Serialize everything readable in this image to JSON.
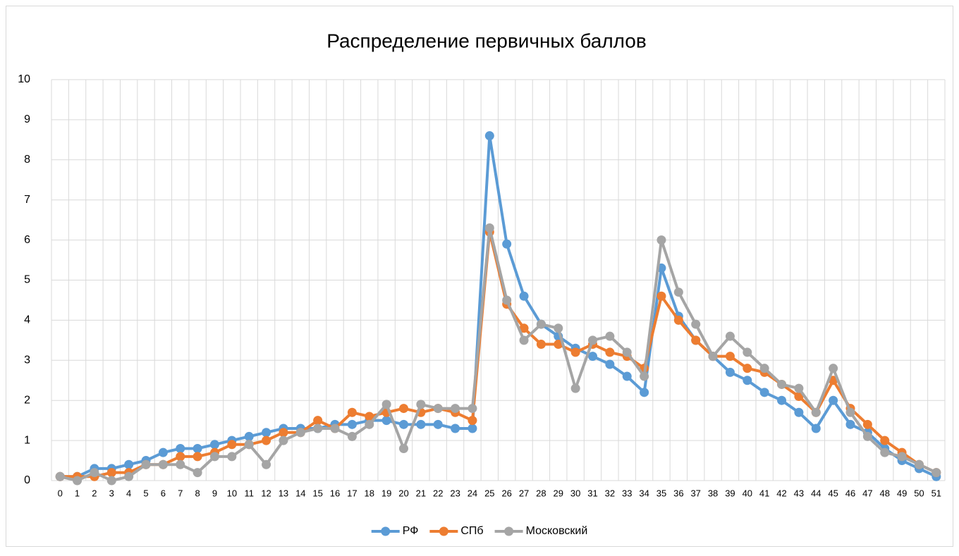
{
  "chart_data": {
    "type": "line",
    "title": "Распределение первичных баллов",
    "categories": [
      "0",
      "1",
      "2",
      "3",
      "4",
      "5",
      "6",
      "7",
      "8",
      "9",
      "10",
      "11",
      "12",
      "13",
      "14",
      "15",
      "16",
      "17",
      "18",
      "19",
      "20",
      "21",
      "22",
      "23",
      "24",
      "25",
      "26",
      "27",
      "28",
      "29",
      "30",
      "31",
      "32",
      "33",
      "34",
      "35",
      "36",
      "37",
      "38",
      "39",
      "40",
      "41",
      "42",
      "43",
      "44",
      "45",
      "46",
      "47",
      "48",
      "49",
      "50",
      "51"
    ],
    "series": [
      {
        "name": "РФ",
        "color": "#5b9bd5",
        "values": [
          0.1,
          0.1,
          0.3,
          0.3,
          0.4,
          0.5,
          0.7,
          0.8,
          0.8,
          0.9,
          1.0,
          1.1,
          1.2,
          1.3,
          1.3,
          1.3,
          1.4,
          1.4,
          1.5,
          1.5,
          1.4,
          1.4,
          1.4,
          1.3,
          1.3,
          8.6,
          5.9,
          4.6,
          3.9,
          3.6,
          3.3,
          3.1,
          2.9,
          2.6,
          2.2,
          5.3,
          4.1,
          3.5,
          3.1,
          2.7,
          2.5,
          2.2,
          2.0,
          1.7,
          1.3,
          2.0,
          1.4,
          1.2,
          0.8,
          0.5,
          0.3,
          0.1
        ]
      },
      {
        "name": "СПб",
        "color": "#ed7d31",
        "values": [
          0.1,
          0.1,
          0.1,
          0.2,
          0.2,
          0.4,
          0.4,
          0.6,
          0.6,
          0.7,
          0.9,
          0.9,
          1.0,
          1.2,
          1.2,
          1.5,
          1.3,
          1.7,
          1.6,
          1.7,
          1.8,
          1.7,
          1.8,
          1.7,
          1.5,
          6.2,
          4.4,
          3.8,
          3.4,
          3.4,
          3.2,
          3.4,
          3.2,
          3.1,
          2.8,
          4.6,
          4.0,
          3.5,
          3.1,
          3.1,
          2.8,
          2.7,
          2.4,
          2.1,
          1.7,
          2.5,
          1.8,
          1.4,
          1.0,
          0.7,
          0.4,
          0.2
        ]
      },
      {
        "name": "Московский",
        "color": "#a5a5a5",
        "values": [
          0.1,
          0.0,
          0.2,
          0.0,
          0.1,
          0.4,
          0.4,
          0.4,
          0.2,
          0.6,
          0.6,
          0.9,
          0.4,
          1.0,
          1.2,
          1.3,
          1.3,
          1.1,
          1.4,
          1.9,
          0.8,
          1.9,
          1.8,
          1.8,
          1.8,
          6.3,
          4.5,
          3.5,
          3.9,
          3.8,
          2.3,
          3.5,
          3.6,
          3.2,
          2.6,
          6.0,
          4.7,
          3.9,
          3.1,
          3.6,
          3.2,
          2.8,
          2.4,
          2.3,
          1.7,
          2.8,
          1.7,
          1.1,
          0.7,
          0.6,
          0.4,
          0.2
        ]
      }
    ],
    "ylim": [
      0,
      10
    ],
    "yticks": [
      0,
      1,
      2,
      3,
      4,
      5,
      6,
      7,
      8,
      9,
      10
    ],
    "grid": true,
    "legend": "bottom"
  }
}
